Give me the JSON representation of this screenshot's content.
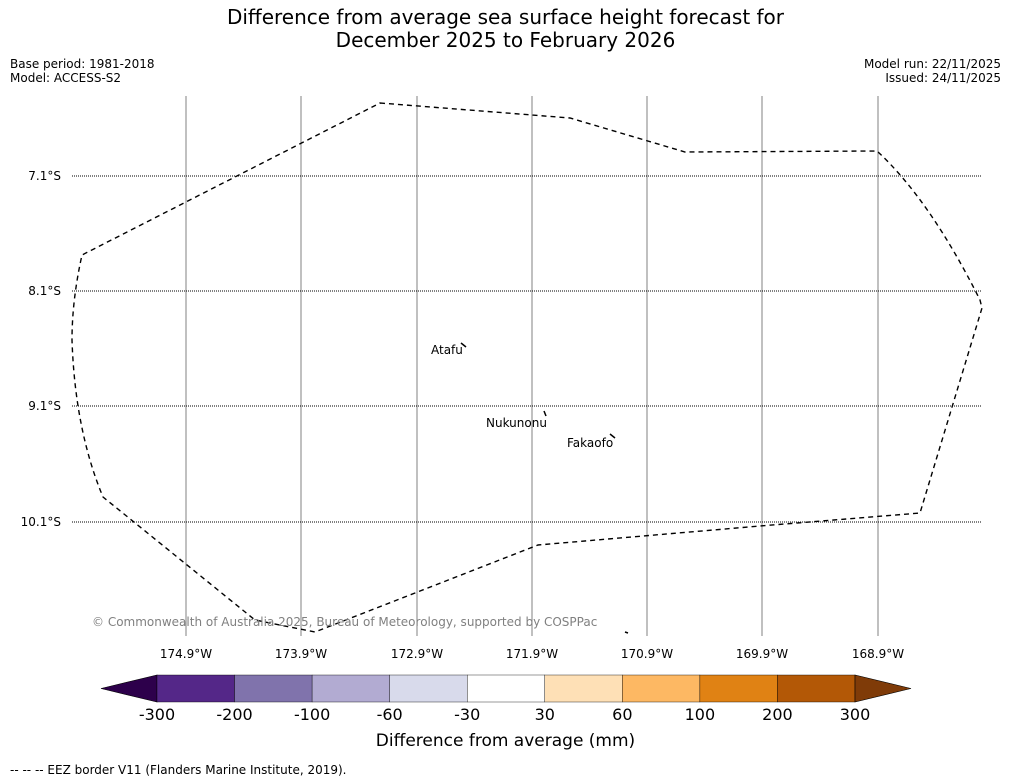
{
  "title": {
    "line1": "Difference from average sea surface height forecast for",
    "line2": "December 2025 to February 2026"
  },
  "meta": {
    "base_period": "Base period: 1981-2018",
    "model": "Model: ACCESS-S2",
    "model_run": "Model run: 22/11/2025",
    "issued": "Issued: 24/11/2025"
  },
  "map": {
    "lat_labels": [
      "7.1°S",
      "8.1°S",
      "9.1°S",
      "10.1°S"
    ],
    "lon_labels": [
      "174.9°W",
      "173.9°W",
      "172.9°W",
      "171.9°W",
      "170.9°W",
      "169.9°W",
      "168.9°W"
    ],
    "places": [
      "Atafu",
      "Nukunonu",
      "Fakaofo"
    ],
    "copyright": "© Commonwealth of Australia 2025, Bureau of Meteorology, supported by COSPPac"
  },
  "colorbar": {
    "label": "Difference from average (mm)",
    "ticks": [
      "-300",
      "-200",
      "-100",
      "-60",
      "-30",
      "30",
      "60",
      "100",
      "200",
      "300"
    ],
    "colors": {
      "under": "#2d004b",
      "bins": [
        "#542788",
        "#8073ac",
        "#b2abd2",
        "#d8daeb",
        "#ffffff",
        "#fee0b6",
        "#fdb863",
        "#e08214",
        "#b35806"
      ],
      "over": "#7f3b08"
    }
  },
  "footnote": "--  --  -- EEZ border V11 (Flanders Marine Institute, 2019)."
}
